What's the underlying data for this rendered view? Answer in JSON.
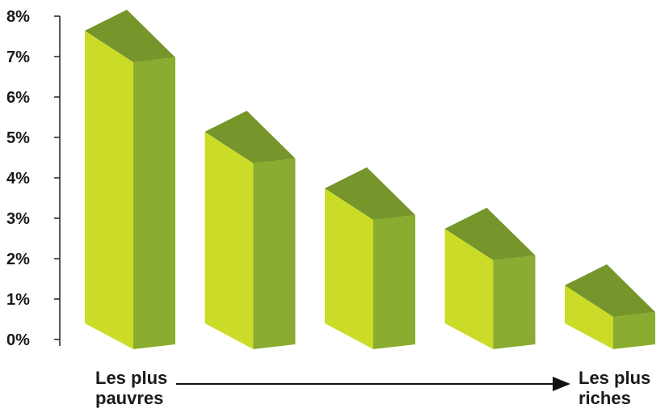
{
  "chart_data": {
    "type": "bar",
    "style": "3d-columns",
    "categories": [
      "",
      "",
      "",
      "",
      ""
    ],
    "values": [
      7.1,
      4.6,
      3.2,
      2.2,
      0.8
    ],
    "ylim": [
      0,
      8
    ],
    "yticks": [
      "0%",
      "1%",
      "2%",
      "3%",
      "4%",
      "5%",
      "6%",
      "7%",
      "8%"
    ],
    "grid": false,
    "x_axis": {
      "start_label_line1": "Les plus",
      "start_label_line2": "pauvres",
      "end_label_line1": "Les plus",
      "end_label_line2": "riches"
    },
    "colors": {
      "front": "#cadc28",
      "side": "#8aac30",
      "top": "#76952a",
      "axis": "#222222"
    }
  }
}
